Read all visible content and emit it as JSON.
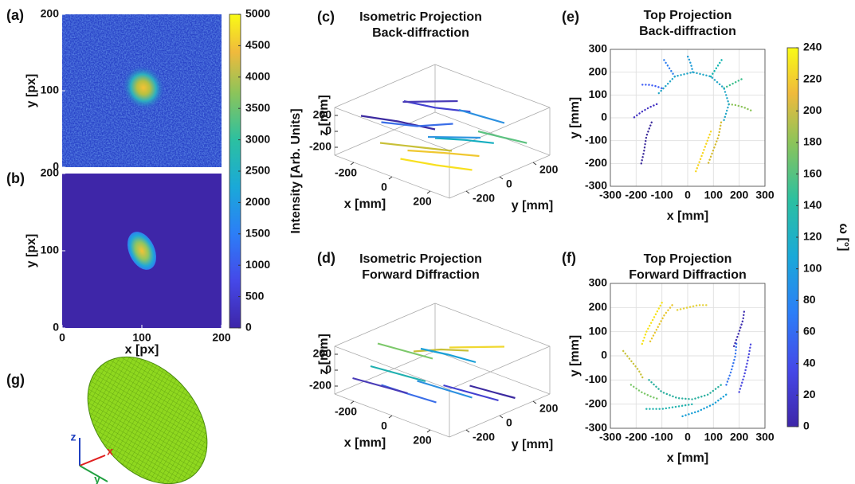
{
  "chart_data": [
    {
      "type": "heatmap",
      "panel": "(a)",
      "ylabel": "y [px]",
      "xlim": [
        0,
        200
      ],
      "ylim": [
        0,
        200
      ],
      "yticks": [
        0,
        100,
        200
      ],
      "style": "noisy"
    },
    {
      "type": "heatmap",
      "panel": "(b)",
      "xlabel": "x [px]",
      "ylabel": "y [px]",
      "xlim": [
        0,
        200
      ],
      "ylim": [
        0,
        200
      ],
      "xticks": [
        0,
        100,
        200
      ],
      "yticks": [
        0,
        100,
        200
      ],
      "style": "masked"
    },
    {
      "type": "colorbar",
      "label": "Intensity [Arb. Units]",
      "ylim": [
        0,
        5000
      ],
      "yticks": [
        0,
        500,
        1000,
        1500,
        2000,
        2500,
        3000,
        3500,
        4000,
        4500,
        5000
      ],
      "label_rotation": -90
    },
    {
      "type": "line3d",
      "panel": "(c)",
      "title": "Isometric Projection",
      "subtitle": "Back-diffraction",
      "xlabel": "x [mm]",
      "ylabel": "y [mm]",
      "zlabel": "z [mm]",
      "xlim": [
        -300,
        300
      ],
      "ylim": [
        -300,
        300
      ],
      "zlim": [
        -300,
        300
      ],
      "xticks": [
        -200,
        0,
        200
      ],
      "yticks": [
        -200,
        0,
        200
      ],
      "zticks": [
        -200,
        0,
        200
      ],
      "series": [
        {
          "color": "#3c2aa0",
          "x": [
            -250,
            -100,
            50
          ],
          "y": [
            -200,
            -150,
            -100
          ],
          "z": [
            150,
            170,
            160
          ]
        },
        {
          "color": "#4340d0",
          "x": [
            -200,
            -80,
            60
          ],
          "y": [
            0,
            50,
            100
          ],
          "z": [
            200,
            180,
            210
          ]
        },
        {
          "color": "#3a6ee8",
          "x": [
            -100,
            0,
            100
          ],
          "y": [
            -250,
            -150,
            -50
          ],
          "z": [
            250,
            200,
            230
          ]
        },
        {
          "color": "#2c90e0",
          "x": [
            0,
            80,
            150
          ],
          "y": [
            100,
            150,
            200
          ],
          "z": [
            180,
            120,
            60
          ]
        },
        {
          "color": "#14aec0",
          "x": [
            50,
            120,
            200
          ],
          "y": [
            -100,
            0,
            80
          ],
          "z": [
            50,
            0,
            -40
          ]
        },
        {
          "color": "#5cc280",
          "x": [
            100,
            180,
            250
          ],
          "y": [
            100,
            160,
            220
          ],
          "z": [
            0,
            -60,
            -120
          ]
        },
        {
          "color": "#c8c038",
          "x": [
            -150,
            -50,
            50
          ],
          "y": [
            -200,
            -100,
            0
          ],
          "z": [
            -100,
            -150,
            -200
          ]
        },
        {
          "color": "#f0c830",
          "x": [
            -50,
            50,
            150
          ],
          "y": [
            -150,
            -50,
            50
          ],
          "z": [
            -150,
            -180,
            -220
          ]
        },
        {
          "color": "#f8e020",
          "x": [
            0,
            100,
            200
          ],
          "y": [
            -250,
            -150,
            -50
          ],
          "z": [
            -120,
            -200,
            -260
          ]
        },
        {
          "color": "#4a3cb8",
          "x": [
            -250,
            -150,
            -50
          ],
          "y": [
            50,
            100,
            150
          ],
          "z": [
            100,
            150,
            200
          ]
        },
        {
          "color": "#3196e0",
          "x": [
            100,
            150,
            200
          ],
          "y": [
            -200,
            -100,
            0
          ],
          "z": [
            200,
            150,
            100
          ]
        }
      ]
    },
    {
      "type": "line3d",
      "panel": "(d)",
      "title": "Isometric Projection",
      "subtitle": "Forward Diffraction",
      "xlabel": "x [mm]",
      "ylabel": "y [mm]",
      "zlabel": "z [mm]",
      "xlim": [
        -300,
        300
      ],
      "ylim": [
        -300,
        300
      ],
      "zlim": [
        -300,
        300
      ],
      "xticks": [
        -200,
        0,
        200
      ],
      "yticks": [
        -200,
        0,
        200
      ],
      "zticks": [
        -200,
        0,
        200
      ],
      "series": [
        {
          "color": "#f0d830",
          "x": [
            -50,
            50,
            150
          ],
          "y": [
            100,
            150,
            200
          ],
          "z": [
            150,
            200,
            250
          ]
        },
        {
          "color": "#c8c038",
          "x": [
            -150,
            -50,
            50
          ],
          "y": [
            0,
            50,
            100
          ],
          "z": [
            100,
            170,
            200
          ]
        },
        {
          "color": "#7cc86a",
          "x": [
            -250,
            -150,
            -50
          ],
          "y": [
            -100,
            -50,
            0
          ],
          "z": [
            200,
            150,
            100
          ]
        },
        {
          "color": "#20b0b0",
          "x": [
            -200,
            -100,
            0
          ],
          "y": [
            -200,
            -150,
            -100
          ],
          "z": [
            50,
            0,
            -50
          ]
        },
        {
          "color": "#2c90e0",
          "x": [
            0,
            100,
            200
          ],
          "y": [
            -150,
            -100,
            -50
          ],
          "z": [
            0,
            -60,
            -120
          ]
        },
        {
          "color": "#3a6ee8",
          "x": [
            -100,
            0,
            100
          ],
          "y": [
            -250,
            -200,
            -150
          ],
          "z": [
            -50,
            -120,
            -180
          ]
        },
        {
          "color": "#4340d0",
          "x": [
            50,
            150,
            250
          ],
          "y": [
            -50,
            0,
            50
          ],
          "z": [
            -100,
            -150,
            -200
          ]
        },
        {
          "color": "#3c2aa0",
          "x": [
            100,
            200,
            250
          ],
          "y": [
            50,
            100,
            150
          ],
          "z": [
            -150,
            -200,
            -260
          ]
        },
        {
          "color": "#4a3cb8",
          "x": [
            -250,
            -150,
            -50
          ],
          "y": [
            -250,
            -200,
            -150
          ],
          "z": [
            -100,
            -150,
            -200
          ]
        },
        {
          "color": "#1aa0d8",
          "x": [
            -200,
            -100,
            0
          ],
          "y": [
            100,
            150,
            200
          ],
          "z": [
            0,
            -30,
            -80
          ]
        }
      ]
    },
    {
      "type": "scatter",
      "panel": "(e)",
      "title": "Top Projection",
      "subtitle": "Back-diffraction",
      "xlabel": "x [mm]",
      "ylabel": "y [mm]",
      "xlim": [
        -300,
        300
      ],
      "ylim": [
        -300,
        300
      ],
      "xticks": [
        -300,
        -200,
        -100,
        0,
        100,
        200,
        300
      ],
      "yticks": [
        -300,
        -200,
        -100,
        0,
        100,
        200,
        300
      ],
      "grid": true,
      "series": [
        {
          "color": "#4232c2",
          "x": [
            -120,
            -150,
            -180,
            -210
          ],
          "y": [
            60,
            45,
            25,
            0
          ]
        },
        {
          "color": "#3f5df5",
          "x": [
            -101,
            -127,
            -153,
            -179
          ],
          "y": [
            130,
            140,
            145,
            145
          ]
        },
        {
          "color": "#2f7ff0",
          "x": [
            -50,
            -65,
            -80,
            -95
          ],
          "y": [
            181,
            207,
            233,
            259
          ]
        },
        {
          "color": "#1e9cd8",
          "x": [
            20,
            15,
            8,
            0
          ],
          "y": [
            200,
            225,
            250,
            270
          ]
        },
        {
          "color": "#0fb5b0",
          "x": [
            90,
            105,
            120,
            135
          ],
          "y": [
            181,
            207,
            233,
            259
          ]
        },
        {
          "color": "#3cbf8c",
          "x": [
            141,
            167,
            193,
            219
          ],
          "y": [
            130,
            145,
            160,
            175
          ]
        },
        {
          "color": "#8cc45a",
          "x": [
            160,
            190,
            220,
            250
          ],
          "y": [
            60,
            55,
            45,
            30
          ]
        },
        {
          "color": "#d5bb30",
          "x": [
            130,
            120,
            100,
            80
          ],
          "y": [
            -20,
            -80,
            -140,
            -200
          ]
        },
        {
          "color": "#f8d61f",
          "x": [
            90,
            70,
            50,
            30
          ],
          "y": [
            -60,
            -120,
            -180,
            -240
          ]
        },
        {
          "color": "#3e2d9c",
          "x": [
            -140,
            -160,
            -170,
            -180
          ],
          "y": [
            -20,
            -80,
            -150,
            -200
          ]
        },
        {
          "color": "#27a8c8",
          "x": [
            -112,
            -50,
            20,
            90,
            141,
            160,
            141
          ],
          "y": [
            108,
            181,
            200,
            181,
            130,
            60,
            -10
          ]
        }
      ]
    },
    {
      "type": "scatter",
      "panel": "(f)",
      "title": "Top Projection",
      "subtitle": "Forward Diffraction",
      "xlabel": "x [mm]",
      "ylabel": "y [mm]",
      "xlim": [
        -300,
        300
      ],
      "ylim": [
        -300,
        300
      ],
      "xticks": [
        -300,
        -200,
        -100,
        0,
        100,
        200,
        300
      ],
      "yticks": [
        -300,
        -200,
        -100,
        0,
        100,
        200,
        300
      ],
      "grid": true,
      "series": [
        {
          "color": "#f6e31a",
          "x": [
            -100,
            -130,
            -160,
            -180
          ],
          "y": [
            220,
            160,
            100,
            40
          ]
        },
        {
          "color": "#e8c52c",
          "x": [
            -60,
            -90,
            -120,
            -150
          ],
          "y": [
            210,
            170,
            110,
            50
          ]
        },
        {
          "color": "#c8c23a",
          "x": [
            -250,
            -220,
            -190,
            -170
          ],
          "y": [
            20,
            -20,
            -60,
            -100
          ]
        },
        {
          "color": "#7cc86a",
          "x": [
            -220,
            -180,
            -140,
            -110
          ],
          "y": [
            -120,
            -150,
            -170,
            -180
          ]
        },
        {
          "color": "#24b4b0",
          "x": [
            -160,
            -100,
            -40,
            20
          ],
          "y": [
            -220,
            -220,
            -210,
            -200
          ]
        },
        {
          "color": "#1aa0d8",
          "x": [
            -20,
            40,
            100,
            150
          ],
          "y": [
            -250,
            -230,
            -200,
            -160
          ]
        },
        {
          "color": "#3676f0",
          "x": [
            150,
            170,
            185,
            190
          ],
          "y": [
            -120,
            -60,
            0,
            60
          ]
        },
        {
          "color": "#4d4ae0",
          "x": [
            200,
            220,
            235,
            245
          ],
          "y": [
            -150,
            -80,
            -10,
            50
          ]
        },
        {
          "color": "#3f2eb0",
          "x": [
            180,
            200,
            215,
            220
          ],
          "y": [
            40,
            100,
            150,
            190
          ]
        },
        {
          "color": "#2cb0a0",
          "x": [
            -150,
            -100,
            -40,
            20,
            80,
            130
          ],
          "y": [
            -100,
            -150,
            -175,
            -180,
            -160,
            -120
          ]
        },
        {
          "color": "#e6d23a",
          "x": [
            -40,
            0,
            40,
            80
          ],
          "y": [
            190,
            200,
            210,
            210
          ]
        }
      ]
    },
    {
      "type": "colorbar",
      "label": "ω [°]",
      "ylim": [
        0,
        240
      ],
      "yticks": [
        0,
        20,
        40,
        60,
        80,
        100,
        120,
        140,
        160,
        180,
        200,
        220,
        240
      ],
      "label_rotation": 90
    }
  ],
  "render": {
    "panel": "(g)",
    "axis_labels": [
      "z",
      "x",
      "y"
    ]
  }
}
